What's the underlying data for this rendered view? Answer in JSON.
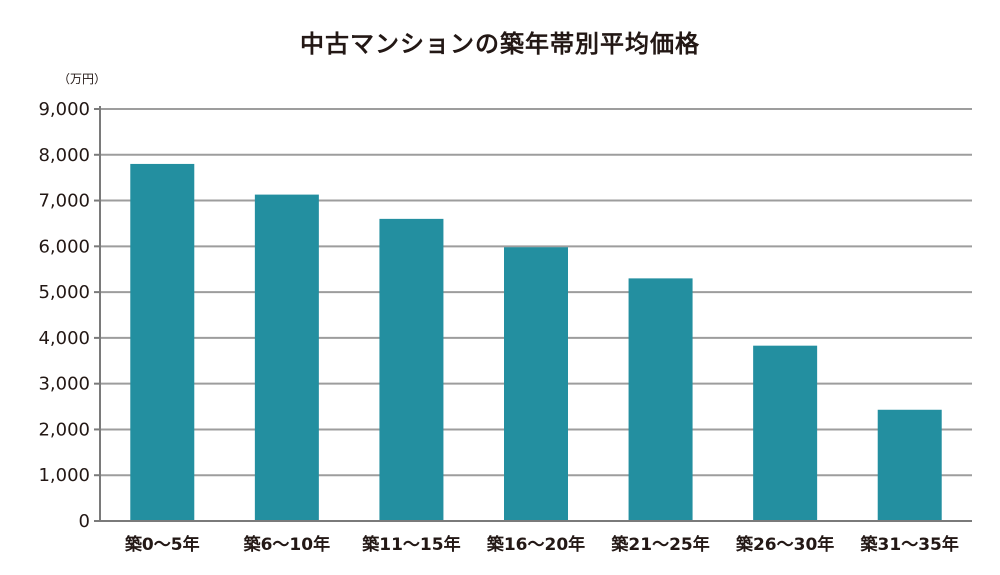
{
  "chart_data": {
    "type": "bar",
    "title": "中古マンションの築年帯別平均価格",
    "unit": "（万円）",
    "categories": [
      "築0～5年",
      "築6～10年",
      "築11～15年",
      "築16～20年",
      "築21～25年",
      "築26～30年",
      "築31～35年"
    ],
    "values": [
      7800,
      7130,
      6600,
      5980,
      5300,
      3830,
      2430
    ],
    "ylim": [
      0,
      9000
    ],
    "yticks": [
      0,
      1000,
      2000,
      3000,
      4000,
      5000,
      6000,
      7000,
      8000,
      9000
    ],
    "ytick_labels": [
      "0",
      "1,000",
      "2,000",
      "3,000",
      "4,000",
      "5,000",
      "6,000",
      "7,000",
      "8,000",
      "9,000"
    ],
    "grid": true,
    "bar_color": "#238fa0",
    "grid_color": "#9d9d9d",
    "axis_color": "#7a7a7a"
  }
}
